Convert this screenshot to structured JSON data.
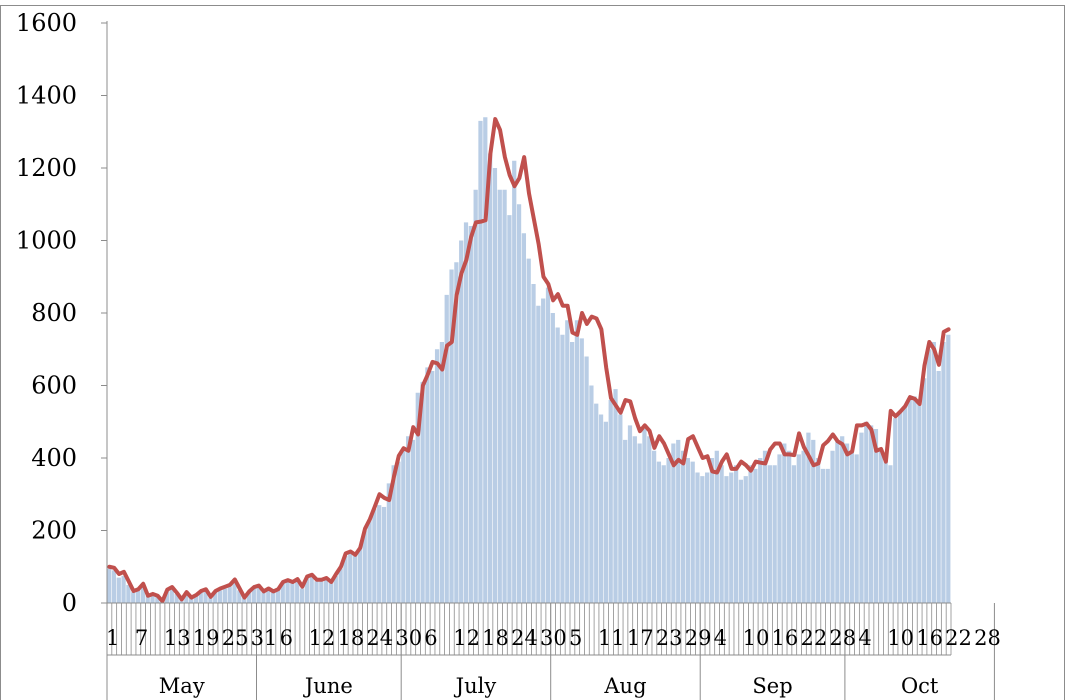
{
  "chart_data": {
    "type": "bar",
    "title": "",
    "xlabel": "",
    "ylabel": "",
    "ylim": [
      0,
      1600
    ],
    "y_ticks": [
      0,
      200,
      400,
      600,
      800,
      1000,
      1200,
      1400,
      1600
    ],
    "grid": false,
    "legend": "none",
    "colors": {
      "bars": "#b9cde5",
      "line": "#c0504d",
      "frame": "#8c8c8c"
    },
    "category_tick_labels": [
      {
        "day": 1,
        "label": "1"
      },
      {
        "day": 7,
        "label": "7"
      },
      {
        "day": 13,
        "label": "13"
      },
      {
        "day": 19,
        "label": "19"
      },
      {
        "day": 25,
        "label": "25"
      },
      {
        "day": 31,
        "label": "31"
      },
      {
        "day": 37,
        "label": "6"
      },
      {
        "day": 43,
        "label": "12"
      },
      {
        "day": 49,
        "label": "18"
      },
      {
        "day": 55,
        "label": "24"
      },
      {
        "day": 61,
        "label": "30"
      },
      {
        "day": 67,
        "label": "6"
      },
      {
        "day": 73,
        "label": "12"
      },
      {
        "day": 79,
        "label": "18"
      },
      {
        "day": 85,
        "label": "24"
      },
      {
        "day": 91,
        "label": "30"
      },
      {
        "day": 97,
        "label": "5"
      },
      {
        "day": 103,
        "label": "11"
      },
      {
        "day": 109,
        "label": "17"
      },
      {
        "day": 115,
        "label": "23"
      },
      {
        "day": 121,
        "label": "29"
      },
      {
        "day": 127,
        "label": "4"
      },
      {
        "day": 133,
        "label": "10"
      },
      {
        "day": 139,
        "label": "16"
      },
      {
        "day": 145,
        "label": "22"
      },
      {
        "day": 151,
        "label": "28"
      },
      {
        "day": 157,
        "label": "4"
      },
      {
        "day": 163,
        "label": "10"
      },
      {
        "day": 169,
        "label": "16"
      },
      {
        "day": 175,
        "label": "22"
      },
      {
        "day": 181,
        "label": "28"
      }
    ],
    "months": [
      {
        "name": "May",
        "start_day": 1,
        "days": 31
      },
      {
        "name": "June",
        "start_day": 32,
        "days": 30
      },
      {
        "name": "July",
        "start_day": 62,
        "days": 31
      },
      {
        "name": "Aug",
        "start_day": 93,
        "days": 31
      },
      {
        "name": "Sep",
        "start_day": 124,
        "days": 30
      },
      {
        "name": "Oct",
        "start_day": 154,
        "days": 31
      }
    ],
    "series": [
      {
        "type": "bar",
        "values": [
          95,
          90,
          70,
          75,
          50,
          30,
          35,
          45,
          20,
          25,
          20,
          5,
          35,
          40,
          25,
          10,
          25,
          15,
          20,
          30,
          35,
          15,
          30,
          35,
          40,
          45,
          55,
          35,
          15,
          30,
          40,
          45,
          30,
          35,
          30,
          35,
          55,
          60,
          55,
          60,
          40,
          70,
          75,
          60,
          60,
          65,
          55,
          75,
          95,
          130,
          140,
          130,
          150,
          200,
          230,
          260,
          270,
          265,
          330,
          380,
          390,
          420,
          460,
          450,
          580,
          610,
          650,
          640,
          700,
          720,
          850,
          920,
          940,
          1000,
          1050,
          1040,
          1140,
          1330,
          1340,
          1240,
          1200,
          1140,
          1140,
          1070,
          1220,
          1100,
          1020,
          950,
          880,
          820,
          840,
          870,
          800,
          760,
          740,
          780,
          720,
          780,
          730,
          680,
          600,
          550,
          520,
          500,
          560,
          590,
          520,
          450,
          490,
          460,
          440,
          480,
          460,
          420,
          390,
          380,
          400,
          440,
          450,
          420,
          400,
          390,
          360,
          350,
          360,
          400,
          420,
          380,
          350,
          360,
          380,
          340,
          350,
          380,
          370,
          400,
          420,
          380,
          380,
          410,
          440,
          420,
          380,
          410,
          420,
          470,
          450,
          400,
          370,
          370,
          420,
          450,
          460,
          440,
          420,
          410,
          470,
          500,
          490,
          480,
          420,
          400,
          380,
          510,
          530,
          540,
          560,
          570,
          560,
          620,
          700,
          720,
          640,
          720,
          740
        ]
      },
      {
        "type": "line",
        "values": [
          100,
          97,
          80,
          86,
          60,
          33,
          38,
          53,
          20,
          25,
          20,
          5,
          37,
          44,
          28,
          10,
          30,
          15,
          22,
          33,
          38,
          17,
          33,
          40,
          45,
          50,
          65,
          40,
          15,
          32,
          44,
          48,
          32,
          40,
          32,
          38,
          58,
          63,
          58,
          66,
          45,
          73,
          78,
          64,
          64,
          69,
          58,
          80,
          100,
          137,
          142,
          133,
          152,
          205,
          231,
          265,
          300,
          290,
          284,
          349,
          406,
          427,
          420,
          485,
          465,
          600,
          630,
          665,
          661,
          644,
          710,
          720,
          850,
          910,
          946,
          1010,
          1050,
          1052,
          1056,
          1240,
          1335,
          1305,
          1230,
          1180,
          1150,
          1172,
          1230,
          1130,
          1060,
          990,
          900,
          880,
          835,
          852,
          820,
          820,
          746,
          740,
          800,
          770,
          790,
          785,
          755,
          650,
          565,
          545,
          525,
          560,
          556,
          510,
          474,
          490,
          475,
          428,
          460,
          440,
          410,
          380,
          395,
          385,
          452,
          460,
          430,
          400,
          405,
          363,
          360,
          390,
          410,
          370,
          370,
          390,
          380,
          365,
          390,
          387,
          385,
          423,
          440,
          440,
          410,
          410,
          408,
          468,
          430,
          406,
          380,
          385,
          435,
          447,
          465,
          446,
          438,
          410,
          418,
          490,
          490,
          495,
          478,
          420,
          425,
          390,
          530,
          515,
          528,
          543,
          568,
          563,
          549,
          655,
          720,
          700,
          657,
          748,
          755
        ]
      }
    ]
  }
}
